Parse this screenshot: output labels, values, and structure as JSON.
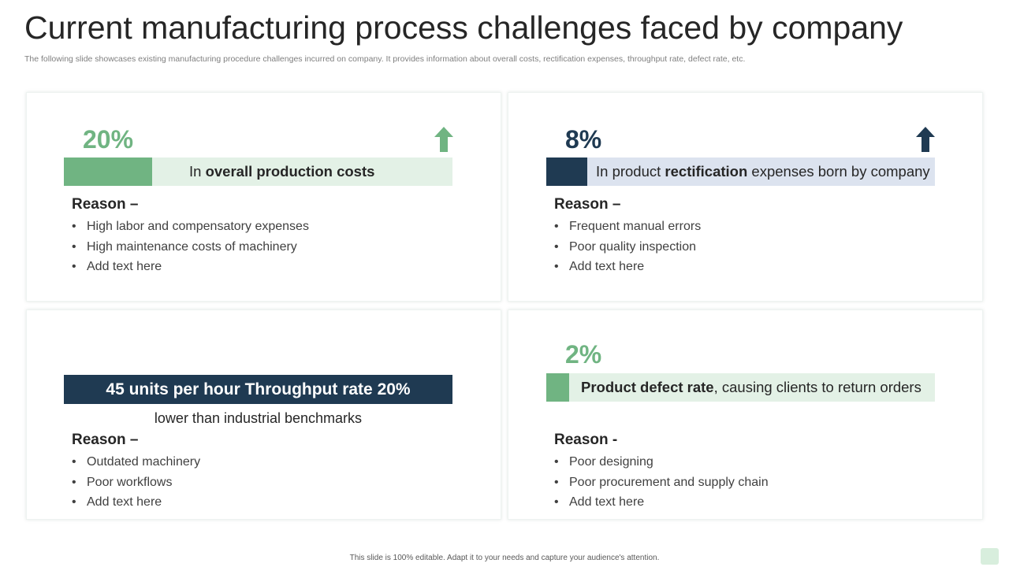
{
  "slide": {
    "title": "Current manufacturing process challenges faced by company",
    "subtitle": "The following slide showcases existing manufacturing procedure challenges incurred on company. It provides information about overall costs, rectification expenses, throughput rate, defect rate, etc.",
    "footer": "This slide is 100% editable.  Adapt it to your needs and capture your audience's attention."
  },
  "colors": {
    "accent_green": "#70b482",
    "light_green": "#e3f1e6",
    "navy": "#1f3a52",
    "light_blue": "#dce3ef"
  },
  "cards": [
    {
      "percent": "20%",
      "trend_icon": "arrow-up-icon",
      "bar_prefix": "In ",
      "bar_bold": "overall production costs",
      "bar_suffix": "",
      "reason_label": "Reason –",
      "reasons": [
        "High labor and compensatory expenses",
        "High maintenance costs of machinery",
        "Add text here"
      ]
    },
    {
      "percent": "8%",
      "trend_icon": "arrow-up-icon",
      "bar_prefix": "In product ",
      "bar_bold": "rectification",
      "bar_suffix": " expenses born by company",
      "reason_label": "Reason –",
      "reasons": [
        "Frequent manual errors",
        "Poor quality inspection",
        "Add text here"
      ]
    },
    {
      "banner": "45 units per hour Throughput rate 20%",
      "below_banner": "lower than industrial benchmarks",
      "reason_label": "Reason –",
      "reasons": [
        "Outdated machinery",
        "Poor workflows",
        "Add text here"
      ]
    },
    {
      "percent": "2%",
      "bar_prefix": "",
      "bar_bold": "Product defect rate",
      "bar_suffix": ", causing clients to return orders",
      "reason_label": "Reason -",
      "reasons": [
        "Poor designing",
        "Poor procurement and supply chain",
        "Add text here"
      ]
    }
  ],
  "bullet_glyph": "•"
}
